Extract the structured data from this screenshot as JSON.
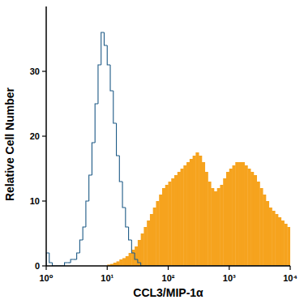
{
  "chart_data": {
    "type": "histogram",
    "x_label": "CCL3/MIP-1α",
    "y_label": "Relative Cell Number",
    "log": "x",
    "grid": false,
    "xlim": [
      1,
      10000
    ],
    "ylim": [
      0,
      40
    ],
    "xticks": [
      {
        "value": 1,
        "label": "10⁰"
      },
      {
        "value": 10,
        "label": "10¹"
      },
      {
        "value": 100,
        "label": "10²"
      },
      {
        "value": 1000,
        "label": "10³"
      },
      {
        "value": 10000,
        "label": "10⁴"
      }
    ],
    "yticks": [
      0,
      10,
      20,
      30
    ],
    "bins": [
      1,
      1.122,
      1.259,
      1.413,
      1.585,
      1.778,
      1.995,
      2.239,
      2.512,
      2.818,
      3.162,
      3.548,
      3.981,
      4.467,
      5.012,
      5.623,
      6.31,
      7.079,
      7.943,
      8.913,
      10,
      11.22,
      12.59,
      14.13,
      15.85,
      17.78,
      19.95,
      22.39,
      25.12,
      28.18,
      31.62,
      35.48,
      39.81,
      44.67,
      50.12,
      56.23,
      63.1,
      70.79,
      79.43,
      89.13,
      100,
      112.2,
      125.9,
      141.3,
      158.5,
      177.8,
      199.5,
      223.9,
      251.2,
      281.8,
      316.2,
      354.8,
      398.1,
      446.7,
      501.2,
      562.3,
      631,
      707.9,
      794.3,
      891.3,
      1000,
      1122,
      1259,
      1413,
      1585,
      1778,
      1995,
      2239,
      2512,
      2818,
      3162,
      3548,
      3981,
      4467,
      5012,
      5623,
      6310,
      7079,
      7943,
      8913,
      10000
    ],
    "series": [
      {
        "type": "histogram",
        "color": "#f6a31e",
        "values": [
          0,
          0,
          0,
          0,
          0,
          0,
          0,
          0,
          0,
          0,
          0,
          0,
          0,
          0,
          0,
          0,
          0,
          0,
          0,
          0,
          0.2,
          0.3,
          0.5,
          0.7,
          1,
          1.2,
          1.5,
          2,
          2.5,
          3,
          4,
          5,
          6,
          7,
          8,
          9,
          10,
          11,
          12,
          12.5,
          13,
          13.5,
          14,
          14.5,
          15,
          15.5,
          16,
          16.5,
          17,
          17.5,
          17,
          16,
          14.5,
          13,
          12,
          11.5,
          12,
          12.5,
          13.5,
          14.5,
          15,
          15.5,
          16,
          16,
          16,
          15.5,
          15,
          14.5,
          14,
          13,
          12,
          11,
          10,
          9,
          8.5,
          8,
          7.5,
          7,
          6.5,
          6
        ]
      },
      {
        "type": "step",
        "color": "#1d5a86",
        "values": [
          2,
          0.5,
          0,
          0,
          0,
          0,
          0.5,
          0.5,
          1,
          1,
          2,
          4,
          6,
          10,
          14,
          19,
          25,
          31,
          36,
          34,
          31,
          27,
          22,
          17,
          13,
          9,
          6,
          4,
          2,
          1,
          0.5,
          0,
          0,
          0,
          0,
          0,
          0,
          0,
          0,
          0,
          0,
          0,
          0,
          0,
          0,
          0,
          0,
          0,
          0,
          0,
          0,
          0,
          0,
          0,
          0,
          0,
          0,
          0,
          0,
          0,
          0,
          0,
          0,
          0,
          0,
          0,
          0,
          0,
          0,
          0,
          0,
          0,
          0,
          0,
          0,
          0,
          0,
          0,
          0,
          0
        ]
      }
    ]
  }
}
